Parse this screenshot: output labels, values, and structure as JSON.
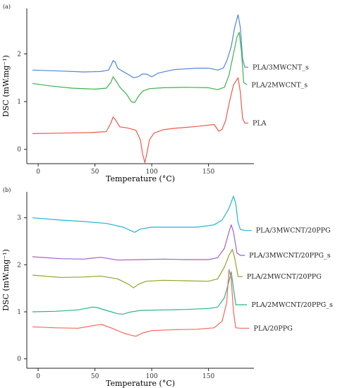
{
  "chart_data": [
    {
      "panel_label": "(a)",
      "type": "line",
      "xlabel": "Temperature (°C)",
      "ylabel": "DSC (mW.mg⁻¹)",
      "xlim": [
        -10,
        190
      ],
      "ylim": [
        -0.3,
        2.95
      ],
      "xticks": [
        0,
        50,
        100,
        150
      ],
      "yticks": [
        0,
        1,
        2
      ],
      "grid": false,
      "legend": "inline labels at right end of curves",
      "series": [
        {
          "name": "PLA/3MWCNT_s",
          "color": "#4F86D8",
          "x": [
            -5,
            20,
            40,
            55,
            62,
            64,
            66,
            68,
            70,
            74,
            80,
            84,
            88,
            92,
            96,
            100,
            106,
            120,
            140,
            150,
            158,
            163,
            166,
            170,
            173,
            176,
            178,
            180,
            182,
            185
          ],
          "y": [
            1.66,
            1.64,
            1.62,
            1.63,
            1.66,
            1.75,
            1.86,
            1.82,
            1.7,
            1.64,
            1.56,
            1.5,
            1.52,
            1.58,
            1.57,
            1.52,
            1.6,
            1.67,
            1.7,
            1.7,
            1.66,
            1.7,
            1.85,
            2.15,
            2.55,
            2.82,
            2.55,
            1.9,
            1.72,
            1.72
          ]
        },
        {
          "name": "PLA/2MWCNT_s",
          "color": "#3BB34A",
          "x": [
            -5,
            10,
            30,
            50,
            60,
            64,
            66,
            68,
            72,
            78,
            82,
            85,
            88,
            92,
            98,
            110,
            130,
            150,
            158,
            164,
            168,
            172,
            175,
            177,
            179,
            181,
            184
          ],
          "y": [
            1.38,
            1.33,
            1.28,
            1.26,
            1.28,
            1.4,
            1.52,
            1.45,
            1.3,
            1.15,
            1.0,
            0.98,
            1.1,
            1.22,
            1.27,
            1.29,
            1.3,
            1.29,
            1.25,
            1.3,
            1.55,
            2.0,
            2.35,
            2.45,
            2.05,
            1.4,
            1.35
          ]
        },
        {
          "name": "PLA",
          "color": "#F0584A",
          "x": [
            -5,
            20,
            45,
            60,
            64,
            66,
            68,
            72,
            78,
            86,
            90,
            92,
            94,
            96,
            98,
            102,
            110,
            120,
            140,
            155,
            159,
            162,
            165,
            168,
            172,
            176,
            178,
            180,
            182,
            185
          ],
          "y": [
            0.33,
            0.34,
            0.35,
            0.37,
            0.55,
            0.68,
            0.62,
            0.47,
            0.45,
            0.4,
            0.2,
            -0.1,
            -0.28,
            -0.05,
            0.2,
            0.34,
            0.41,
            0.44,
            0.48,
            0.52,
            0.38,
            0.42,
            0.6,
            0.95,
            1.35,
            1.5,
            1.2,
            0.65,
            0.55,
            0.55
          ]
        }
      ]
    },
    {
      "panel_label": "(b)",
      "type": "line",
      "xlabel": "Temperature (°C)",
      "ylabel": "DSC (mW.mg⁻¹)",
      "xlim": [
        -10,
        190
      ],
      "ylim": [
        -0.2,
        3.55
      ],
      "xticks": [
        0,
        50,
        100,
        150
      ],
      "yticks": [
        0,
        1,
        2,
        3
      ],
      "grid": false,
      "legend": "inline labels at right end of curves",
      "series": [
        {
          "name": "PLA/3MWCNT/20PPG",
          "color": "#22B5D4",
          "x": [
            -5,
            20,
            40,
            60,
            75,
            82,
            85,
            90,
            100,
            120,
            140,
            155,
            162,
            168,
            172,
            174,
            176,
            178,
            182,
            188
          ],
          "y": [
            3.0,
            2.95,
            2.92,
            2.88,
            2.8,
            2.72,
            2.69,
            2.76,
            2.8,
            2.8,
            2.8,
            2.85,
            2.95,
            3.2,
            3.46,
            3.3,
            2.9,
            2.75,
            2.73,
            2.73
          ]
        },
        {
          "name": "PLA/3MWCNT/20PPG_s",
          "color": "#A35FC8",
          "x": [
            -5,
            20,
            40,
            55,
            70,
            90,
            110,
            130,
            150,
            158,
            164,
            168,
            170,
            172,
            175,
            178,
            182
          ],
          "y": [
            2.17,
            2.13,
            2.12,
            2.16,
            2.1,
            2.11,
            2.12,
            2.11,
            2.11,
            2.15,
            2.35,
            2.7,
            2.85,
            2.7,
            2.25,
            2.2,
            2.2
          ]
        },
        {
          "name": "PLA/2MWCNT/20PPG",
          "color": "#93A328",
          "x": [
            -5,
            20,
            40,
            55,
            70,
            80,
            84,
            88,
            95,
            110,
            130,
            150,
            158,
            164,
            168,
            171,
            173,
            176,
            180
          ],
          "y": [
            1.78,
            1.73,
            1.74,
            1.76,
            1.7,
            1.58,
            1.51,
            1.58,
            1.65,
            1.67,
            1.66,
            1.65,
            1.7,
            1.95,
            2.2,
            2.33,
            2.15,
            1.75,
            1.75
          ]
        },
        {
          "name": "PLA/2MWCNT/20PPG_s",
          "color": "#27B58A",
          "x": [
            -5,
            15,
            35,
            48,
            52,
            60,
            70,
            75,
            80,
            90,
            110,
            130,
            150,
            158,
            164,
            168,
            170,
            172,
            174,
            178,
            184
          ],
          "y": [
            1.0,
            1.01,
            1.04,
            1.1,
            1.09,
            1.03,
            0.96,
            0.95,
            0.99,
            1.03,
            1.04,
            1.05,
            1.07,
            1.1,
            1.3,
            1.65,
            1.85,
            1.5,
            1.15,
            1.15,
            1.15
          ]
        },
        {
          "name": "PLA/20PPG",
          "color": "#F2685C",
          "x": [
            -5,
            15,
            35,
            52,
            56,
            65,
            75,
            82,
            86,
            92,
            100,
            120,
            140,
            155,
            162,
            166,
            168,
            170,
            172,
            174,
            178,
            186
          ],
          "y": [
            0.68,
            0.66,
            0.65,
            0.72,
            0.73,
            0.65,
            0.55,
            0.5,
            0.48,
            0.55,
            0.6,
            0.62,
            0.63,
            0.66,
            0.8,
            1.2,
            1.9,
            1.7,
            1.0,
            0.66,
            0.65,
            0.65
          ]
        }
      ]
    }
  ]
}
